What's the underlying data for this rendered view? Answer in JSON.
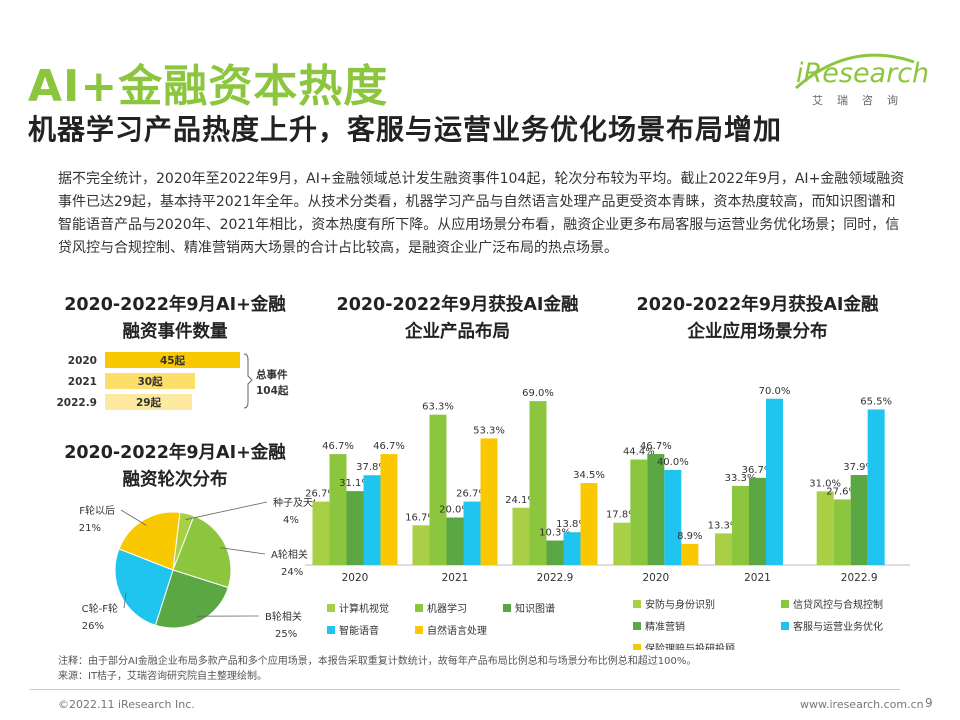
{
  "header": {
    "title": "AI+金融资本热度",
    "subtitle": "机器学习产品热度上升，客服与运营业务优化场景布局增加"
  },
  "logo": {
    "text": "iResearch",
    "cn": "艾瑞咨询"
  },
  "summary": "据不完全统计，2020年至2022年9月，AI+金融领域总计发生融资事件104起，轮次分布较为平均。截止2022年9月，AI+金融领域融资事件已达29起，基本持平2021年全年。从技术分类看，机器学习产品与自然语言处理产品更受资本青睐，资本热度较高，而知识图谱和智能语音产品与2020年、2021年相比，资本热度有所下降。从应用场景分布看，融资企业更多布局客服与运营业务优化场景；同时，信贷风控与合规控制、精准营销两大场景的合计占比较高，是融资企业广泛布局的热点场景。",
  "panels": {
    "events_title": "2020-2022年9月AI+金融\n融资事件数量",
    "rounds_title": "2020-2022年9月AI+金融\n融资轮次分布",
    "products_title": "2020-2022年9月获投AI金融\n企业产品布局",
    "scenes_title": "2020-2022年9月获投AI金融\n企业应用场景分布"
  },
  "footer": {
    "note": "注释：由于部分AI金融企业布局多款产品和多个应用场景，本报告采取重复计数统计，故每年产品布局比例总和与场景分布比例总和超过100%。",
    "source": "来源：IT桔子，艾瑞咨询研究院自主整理绘制。",
    "copyright": "©2022.11 iResearch Inc.",
    "website": "www.iresearch.com.cn",
    "page": "9"
  },
  "chart_data": [
    {
      "type": "bar",
      "categories": [
        "2020",
        "2021",
        "2022.9"
      ],
      "values": [
        45,
        30,
        29
      ],
      "value_labels": [
        "45起",
        "30起",
        "29起"
      ],
      "colors": [
        "#f9c800",
        "#fbdf6a",
        "#fde9a0"
      ],
      "total_label": "总事件\n104起"
    },
    {
      "type": "pie",
      "categories": [
        "种子及天使轮",
        "A轮相关",
        "B轮相关",
        "C轮-F轮",
        "F轮以后"
      ],
      "values": [
        4,
        24,
        25,
        26,
        21
      ],
      "labels": [
        "4%",
        "24%",
        "25%",
        "26%",
        "21%"
      ],
      "colors": [
        "#a8cf45",
        "#8cc63f",
        "#5aa744",
        "#1fc4ef",
        "#f9c800"
      ]
    },
    {
      "type": "bar",
      "categories": [
        "2020",
        "2021",
        "2022.9"
      ],
      "ylim": [
        0,
        80
      ],
      "series": [
        {
          "name": "计算机视觉",
          "color": "#a8cf45",
          "values": [
            26.7,
            16.7,
            24.1
          ],
          "labels": [
            "26.7%",
            "16.7%",
            "24.1%"
          ]
        },
        {
          "name": "机器学习",
          "color": "#8cc63f",
          "values": [
            46.7,
            63.3,
            69.0
          ],
          "labels": [
            "46.7%",
            "63.3%",
            "69.0%"
          ]
        },
        {
          "name": "知识图谱",
          "color": "#5aa744",
          "values": [
            31.1,
            20.0,
            10.3
          ],
          "labels": [
            "31.1%",
            "20.0%",
            "10.3%"
          ]
        },
        {
          "name": "智能语音",
          "color": "#1fc4ef",
          "values": [
            37.8,
            26.7,
            13.8
          ],
          "labels": [
            "37.8%",
            "26.7%",
            "13.8%"
          ]
        },
        {
          "name": "自然语言处理",
          "color": "#f9c800",
          "values": [
            46.7,
            53.3,
            34.5
          ],
          "labels": [
            "46.7%",
            "53.3%",
            "34.5%"
          ]
        }
      ]
    },
    {
      "type": "bar",
      "categories": [
        "2020",
        "2021",
        "2022.9"
      ],
      "ylim": [
        0,
        80
      ],
      "series": [
        {
          "name": "安防与身份识别",
          "color": "#a8cf45",
          "values": [
            17.8,
            13.3,
            31.0
          ],
          "labels": [
            "17.8%",
            "13.3%",
            "31.0%"
          ]
        },
        {
          "name": "信贷风控与合规控制",
          "color": "#8cc63f",
          "values": [
            44.4,
            33.3,
            27.6
          ],
          "labels": [
            "44.4%",
            "33.3%",
            "27.6%"
          ]
        },
        {
          "name": "精准营销",
          "color": "#5aa744",
          "values": [
            46.7,
            36.7,
            37.9
          ],
          "labels": [
            "46.7%",
            "36.7%",
            "37.9%"
          ]
        },
        {
          "name": "客服与运营业务优化",
          "color": "#1fc4ef",
          "values": [
            40.0,
            70.0,
            65.5
          ],
          "labels": [
            "40.0%",
            "70.0%",
            "65.5%"
          ]
        },
        {
          "name": "保险理赔与投研投顾",
          "color": "#f9c800",
          "values": [
            8.9,
            null,
            null
          ],
          "labels": [
            "8.9%",
            "",
            ""
          ]
        }
      ]
    }
  ]
}
